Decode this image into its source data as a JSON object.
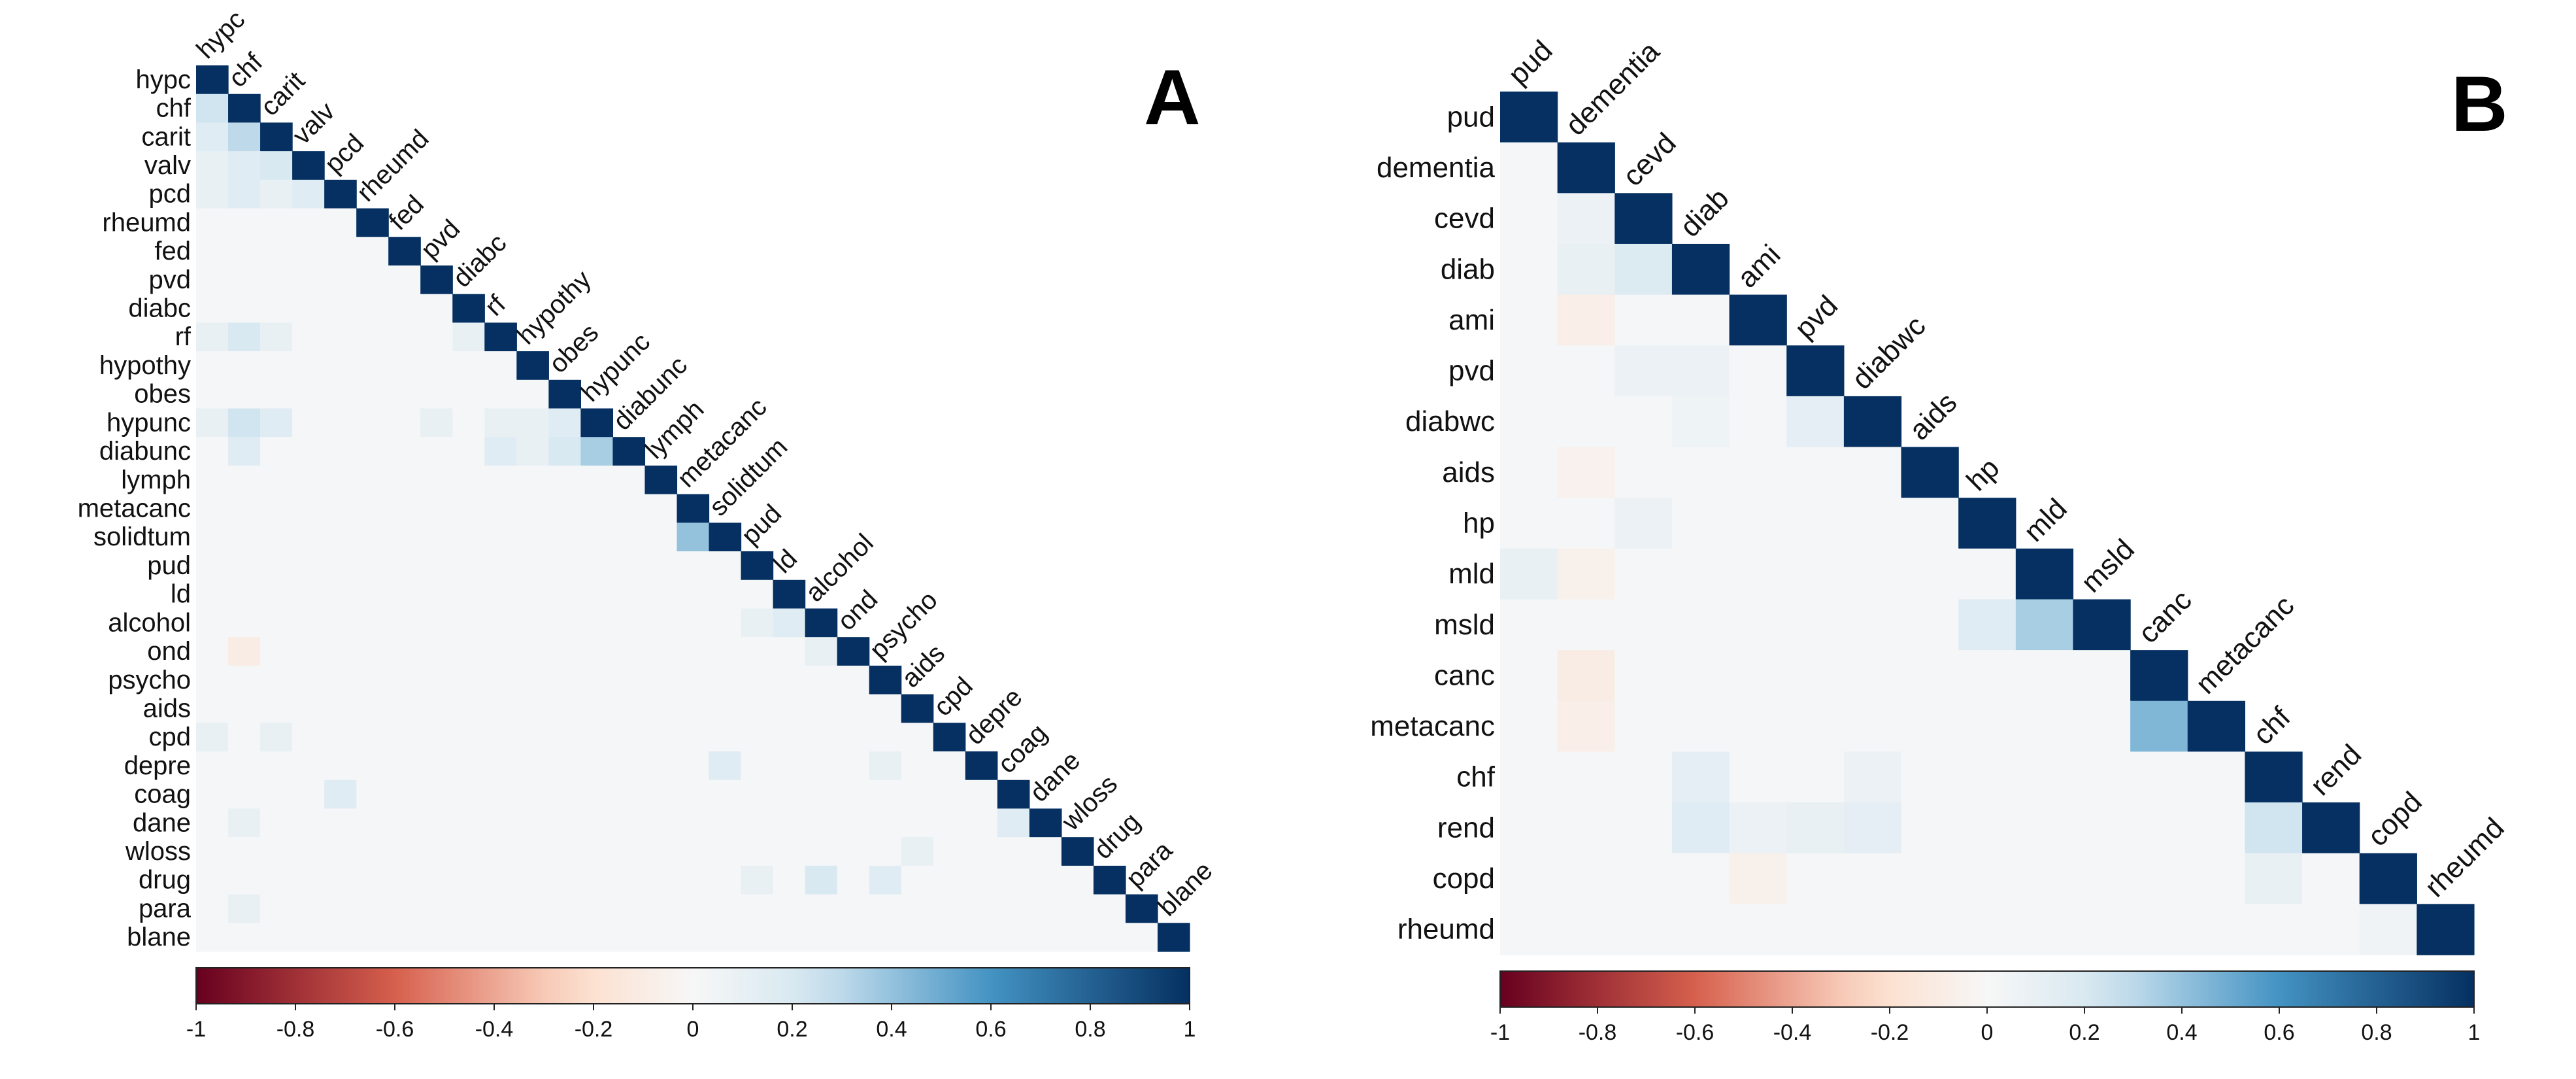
{
  "chart_data": [
    {
      "type": "heatmap",
      "panel_label": "A",
      "labels": [
        "hypc",
        "chf",
        "carit",
        "valv",
        "pcd",
        "rheumd",
        "fed",
        "pvd",
        "diabc",
        "rf",
        "hypothy",
        "obes",
        "hypunc",
        "diabunc",
        "lymph",
        "metacanc",
        "solidtum",
        "pud",
        "ld",
        "alcohol",
        "ond",
        "psycho",
        "aids",
        "cpd",
        "depre",
        "coag",
        "dane",
        "wloss",
        "drug",
        "para",
        "blane"
      ],
      "lower_triangle_only": true,
      "diagonal": 1,
      "correlations": [
        {
          "row": "chf",
          "col": "hypc",
          "value": 0.25
        },
        {
          "row": "carit",
          "col": "hypc",
          "value": 0.15
        },
        {
          "row": "carit",
          "col": "chf",
          "value": 0.3
        },
        {
          "row": "valv",
          "col": "hypc",
          "value": 0.1
        },
        {
          "row": "valv",
          "col": "chf",
          "value": 0.15
        },
        {
          "row": "valv",
          "col": "carit",
          "value": 0.2
        },
        {
          "row": "pcd",
          "col": "hypc",
          "value": 0.1
        },
        {
          "row": "pcd",
          "col": "chf",
          "value": 0.15
        },
        {
          "row": "pcd",
          "col": "carit",
          "value": 0.1
        },
        {
          "row": "pcd",
          "col": "valv",
          "value": 0.15
        },
        {
          "row": "rf",
          "col": "chf",
          "value": 0.2
        },
        {
          "row": "rf",
          "col": "carit",
          "value": 0.1
        },
        {
          "row": "rf",
          "col": "hypc",
          "value": 0.1
        },
        {
          "row": "rf",
          "col": "diabc",
          "value": 0.1
        },
        {
          "row": "hypunc",
          "col": "chf",
          "value": 0.25
        },
        {
          "row": "hypunc",
          "col": "carit",
          "value": 0.15
        },
        {
          "row": "hypunc",
          "col": "hypc",
          "value": 0.1
        },
        {
          "row": "hypunc",
          "col": "rf",
          "value": 0.1
        },
        {
          "row": "hypunc",
          "col": "pvd",
          "value": 0.1
        },
        {
          "row": "hypunc",
          "col": "obes",
          "value": 0.15
        },
        {
          "row": "hypunc",
          "col": "hypothy",
          "value": 0.1
        },
        {
          "row": "diabunc",
          "col": "hypunc",
          "value": 0.35
        },
        {
          "row": "diabunc",
          "col": "obes",
          "value": 0.2
        },
        {
          "row": "diabunc",
          "col": "chf",
          "value": 0.15
        },
        {
          "row": "diabunc",
          "col": "rf",
          "value": 0.15
        },
        {
          "row": "diabunc",
          "col": "hypothy",
          "value": 0.1
        },
        {
          "row": "solidtum",
          "col": "metacanc",
          "value": 0.4
        },
        {
          "row": "alcohol",
          "col": "ld",
          "value": 0.15
        },
        {
          "row": "alcohol",
          "col": "pud",
          "value": 0.1
        },
        {
          "row": "ond",
          "col": "chf",
          "value": -0.1
        },
        {
          "row": "ond",
          "col": "alcohol",
          "value": 0.1
        },
        {
          "row": "cpd",
          "col": "hypc",
          "value": 0.1
        },
        {
          "row": "cpd",
          "col": "carit",
          "value": 0.1
        },
        {
          "row": "depre",
          "col": "solidtum",
          "value": 0.15
        },
        {
          "row": "depre",
          "col": "psycho",
          "value": 0.1
        },
        {
          "row": "coag",
          "col": "pcd",
          "value": 0.15
        },
        {
          "row": "dane",
          "col": "chf",
          "value": 0.1
        },
        {
          "row": "dane",
          "col": "coag",
          "value": 0.15
        },
        {
          "row": "wloss",
          "col": "aids",
          "value": 0.1
        },
        {
          "row": "drug",
          "col": "alcohol",
          "value": 0.2
        },
        {
          "row": "drug",
          "col": "psycho",
          "value": 0.15
        },
        {
          "row": "drug",
          "col": "pud",
          "value": 0.1
        },
        {
          "row": "para",
          "col": "chf",
          "value": 0.1
        }
      ],
      "legend": {
        "min": -1,
        "max": 1,
        "ticks": [
          "-1",
          "-0.8",
          "-0.6",
          "-0.4",
          "-0.2",
          "0",
          "0.2",
          "0.4",
          "0.6",
          "0.8",
          "1"
        ]
      }
    },
    {
      "type": "heatmap",
      "panel_label": "B",
      "labels": [
        "pud",
        "dementia",
        "cevd",
        "diab",
        "ami",
        "pvd",
        "diabwc",
        "aids",
        "hp",
        "mld",
        "msld",
        "canc",
        "metacanc",
        "chf",
        "rend",
        "copd",
        "rheumd"
      ],
      "lower_triangle_only": true,
      "diagonal": 1,
      "correlations": [
        {
          "row": "cevd",
          "col": "dementia",
          "value": 0.08
        },
        {
          "row": "diab",
          "col": "dementia",
          "value": 0.1
        },
        {
          "row": "diab",
          "col": "cevd",
          "value": 0.18
        },
        {
          "row": "ami",
          "col": "dementia",
          "value": -0.08
        },
        {
          "row": "pvd",
          "col": "cevd",
          "value": 0.08
        },
        {
          "row": "pvd",
          "col": "diab",
          "value": 0.08
        },
        {
          "row": "diabwc",
          "col": "diab",
          "value": 0.06
        },
        {
          "row": "diabwc",
          "col": "pvd",
          "value": 0.12
        },
        {
          "row": "aids",
          "col": "dementia",
          "value": -0.05
        },
        {
          "row": "hp",
          "col": "cevd",
          "value": 0.08
        },
        {
          "row": "mld",
          "col": "pud",
          "value": 0.1
        },
        {
          "row": "mld",
          "col": "dementia",
          "value": -0.06
        },
        {
          "row": "msld",
          "col": "hp",
          "value": 0.15
        },
        {
          "row": "msld",
          "col": "mld",
          "value": 0.35
        },
        {
          "row": "canc",
          "col": "dementia",
          "value": -0.1
        },
        {
          "row": "metacanc",
          "col": "dementia",
          "value": -0.08
        },
        {
          "row": "metacanc",
          "col": "canc",
          "value": 0.45
        },
        {
          "row": "chf",
          "col": "diab",
          "value": 0.12
        },
        {
          "row": "chf",
          "col": "diabwc",
          "value": 0.08
        },
        {
          "row": "rend",
          "col": "diab",
          "value": 0.15
        },
        {
          "row": "rend",
          "col": "ami",
          "value": 0.08
        },
        {
          "row": "rend",
          "col": "pvd",
          "value": 0.1
        },
        {
          "row": "rend",
          "col": "diabwc",
          "value": 0.12
        },
        {
          "row": "rend",
          "col": "chf",
          "value": 0.25
        },
        {
          "row": "copd",
          "col": "ami",
          "value": -0.06
        },
        {
          "row": "copd",
          "col": "chf",
          "value": 0.1
        },
        {
          "row": "rheumd",
          "col": "copd",
          "value": 0.05
        }
      ],
      "legend": {
        "min": -1,
        "max": 1,
        "ticks": [
          "-1",
          "-0.8",
          "-0.6",
          "-0.4",
          "-0.2",
          "0",
          "0.2",
          "0.4",
          "0.6",
          "0.8",
          "1"
        ]
      }
    }
  ],
  "colors": {
    "neg_end": "#67001f",
    "neg_mid": "#d6604d",
    "neg_light": "#fddbc7",
    "zero": "#f7f7f7",
    "pos_light": "#d1e5f0",
    "pos_mid": "#4393c3",
    "pos_end": "#053061",
    "diagonal": "#053061"
  }
}
